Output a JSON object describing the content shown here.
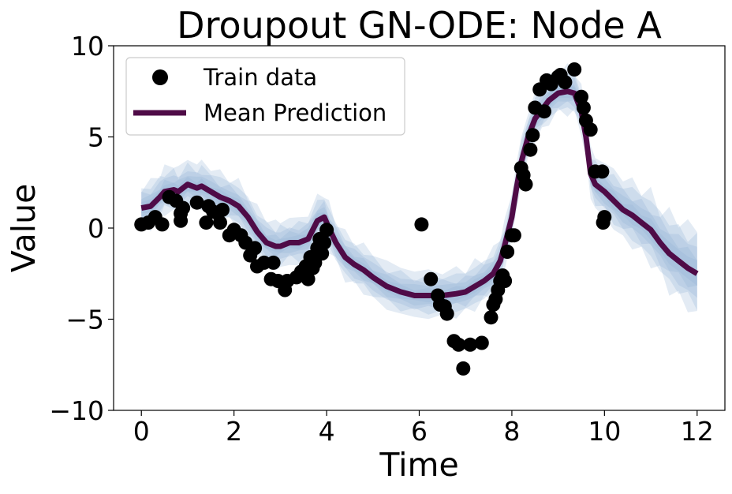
{
  "chart_data": {
    "type": "line",
    "title": "Droupout GN-ODE: Node A",
    "xlabel": "Time",
    "ylabel": "Value",
    "xlim": [
      -0.6,
      12.6
    ],
    "ylim": [
      -10,
      10
    ],
    "xticks": [
      0,
      2,
      4,
      6,
      8,
      10,
      12
    ],
    "xtick_labels": [
      "0",
      "2",
      "4",
      "6",
      "8",
      "10",
      "12"
    ],
    "yticks": [
      10,
      5,
      0,
      -5,
      -10
    ],
    "ytick_labels": [
      "10",
      "5",
      "0",
      "−5",
      "−10"
    ],
    "grid": false,
    "legend_position": "top-left",
    "legend": [
      {
        "label": "Train data",
        "marker": "circle",
        "color": "#000000"
      },
      {
        "label": "Mean Prediction",
        "marker": "line",
        "color": "#4f0b47"
      }
    ],
    "colors": {
      "mean": "#4f0b47",
      "points": "#000000",
      "band": "#9bb8d9"
    },
    "series": [
      {
        "name": "Train data",
        "kind": "scatter",
        "x": [
          0.0,
          0.15,
          0.3,
          0.45,
          0.6,
          0.75,
          0.85,
          0.85,
          0.9,
          1.2,
          1.4,
          1.45,
          1.55,
          1.65,
          1.7,
          1.75,
          1.9,
          2.0,
          2.15,
          2.25,
          2.35,
          2.45,
          2.5,
          2.65,
          2.8,
          2.85,
          2.95,
          3.1,
          3.15,
          3.35,
          3.45,
          3.55,
          3.6,
          3.65,
          3.7,
          3.75,
          3.8,
          3.85,
          3.9,
          3.95,
          4.0,
          6.05,
          6.25,
          6.4,
          6.45,
          6.55,
          6.6,
          6.75,
          6.85,
          6.95,
          7.1,
          7.35,
          7.55,
          7.6,
          7.65,
          7.7,
          7.75,
          7.8,
          7.85,
          7.9,
          8.0,
          8.05,
          8.2,
          8.25,
          8.3,
          8.4,
          8.45,
          8.5,
          8.6,
          8.7,
          8.75,
          8.85,
          9.0,
          9.05,
          9.15,
          9.35,
          9.5,
          9.55,
          9.6,
          9.7,
          9.8,
          9.95,
          9.97,
          10.0
        ],
        "y": [
          0.2,
          0.3,
          0.6,
          0.2,
          1.7,
          1.5,
          0.4,
          0.8,
          1.1,
          1.4,
          0.3,
          1.2,
          0.9,
          0.8,
          0.3,
          1.0,
          -0.4,
          -0.1,
          -0.4,
          -0.8,
          -1.5,
          -1.1,
          -2.1,
          -1.9,
          -2.8,
          -1.9,
          -2.9,
          -3.4,
          -2.9,
          -2.7,
          -2.4,
          -2.1,
          -2.8,
          -1.6,
          -2.2,
          -1.9,
          -1.1,
          -0.6,
          -1.4,
          -0.8,
          -0.1,
          0.2,
          -2.8,
          -3.7,
          -4.2,
          -4.3,
          -4.7,
          -6.2,
          -6.4,
          -7.7,
          -6.4,
          -6.3,
          -4.9,
          -4.2,
          -3.9,
          -3.4,
          -2.9,
          -2.6,
          -2.9,
          -1.3,
          -0.4,
          -0.4,
          3.3,
          2.9,
          2.4,
          4.3,
          5.1,
          6.6,
          7.6,
          6.4,
          8.1,
          7.9,
          8.3,
          8.4,
          8.0,
          8.7,
          7.2,
          6.6,
          5.9,
          5.4,
          3.1,
          3.1,
          0.3,
          0.6
        ]
      },
      {
        "name": "Mean Prediction",
        "kind": "line",
        "x": [
          0.0,
          0.2,
          0.4,
          0.5,
          0.7,
          0.8,
          1.0,
          1.2,
          1.3,
          1.5,
          1.7,
          1.9,
          2.1,
          2.3,
          2.5,
          2.7,
          2.9,
          3.0,
          3.2,
          3.4,
          3.6,
          3.8,
          3.95,
          4.05,
          4.2,
          4.4,
          4.6,
          4.8,
          5.0,
          5.3,
          5.6,
          5.9,
          6.2,
          6.5,
          6.8,
          7.0,
          7.2,
          7.4,
          7.6,
          7.75,
          7.85,
          8.0,
          8.1,
          8.2,
          8.35,
          8.5,
          8.65,
          8.8,
          9.0,
          9.2,
          9.35,
          9.5,
          9.6,
          9.7,
          9.8,
          10.0,
          10.2,
          10.4,
          10.6,
          10.8,
          11.0,
          11.2,
          11.4,
          11.6,
          11.8,
          12.0
        ],
        "y": [
          1.1,
          1.2,
          1.7,
          2.0,
          2.1,
          2.0,
          2.4,
          2.2,
          2.3,
          2.0,
          1.7,
          1.5,
          1.2,
          0.6,
          -0.2,
          -0.8,
          -1.0,
          -1.0,
          -0.8,
          -0.8,
          -0.6,
          0.4,
          0.6,
          0.0,
          -0.8,
          -1.6,
          -2.0,
          -2.3,
          -2.7,
          -3.2,
          -3.5,
          -3.7,
          -3.7,
          -3.7,
          -3.6,
          -3.5,
          -3.2,
          -2.9,
          -2.5,
          -1.8,
          -0.9,
          0.6,
          2.2,
          3.6,
          5.0,
          6.0,
          6.5,
          7.0,
          7.4,
          7.5,
          7.4,
          6.4,
          5.0,
          3.0,
          2.4,
          2.0,
          1.5,
          1.0,
          0.7,
          0.3,
          -0.1,
          -0.8,
          -1.4,
          -1.8,
          -2.2,
          -2.5
        ]
      }
    ]
  }
}
